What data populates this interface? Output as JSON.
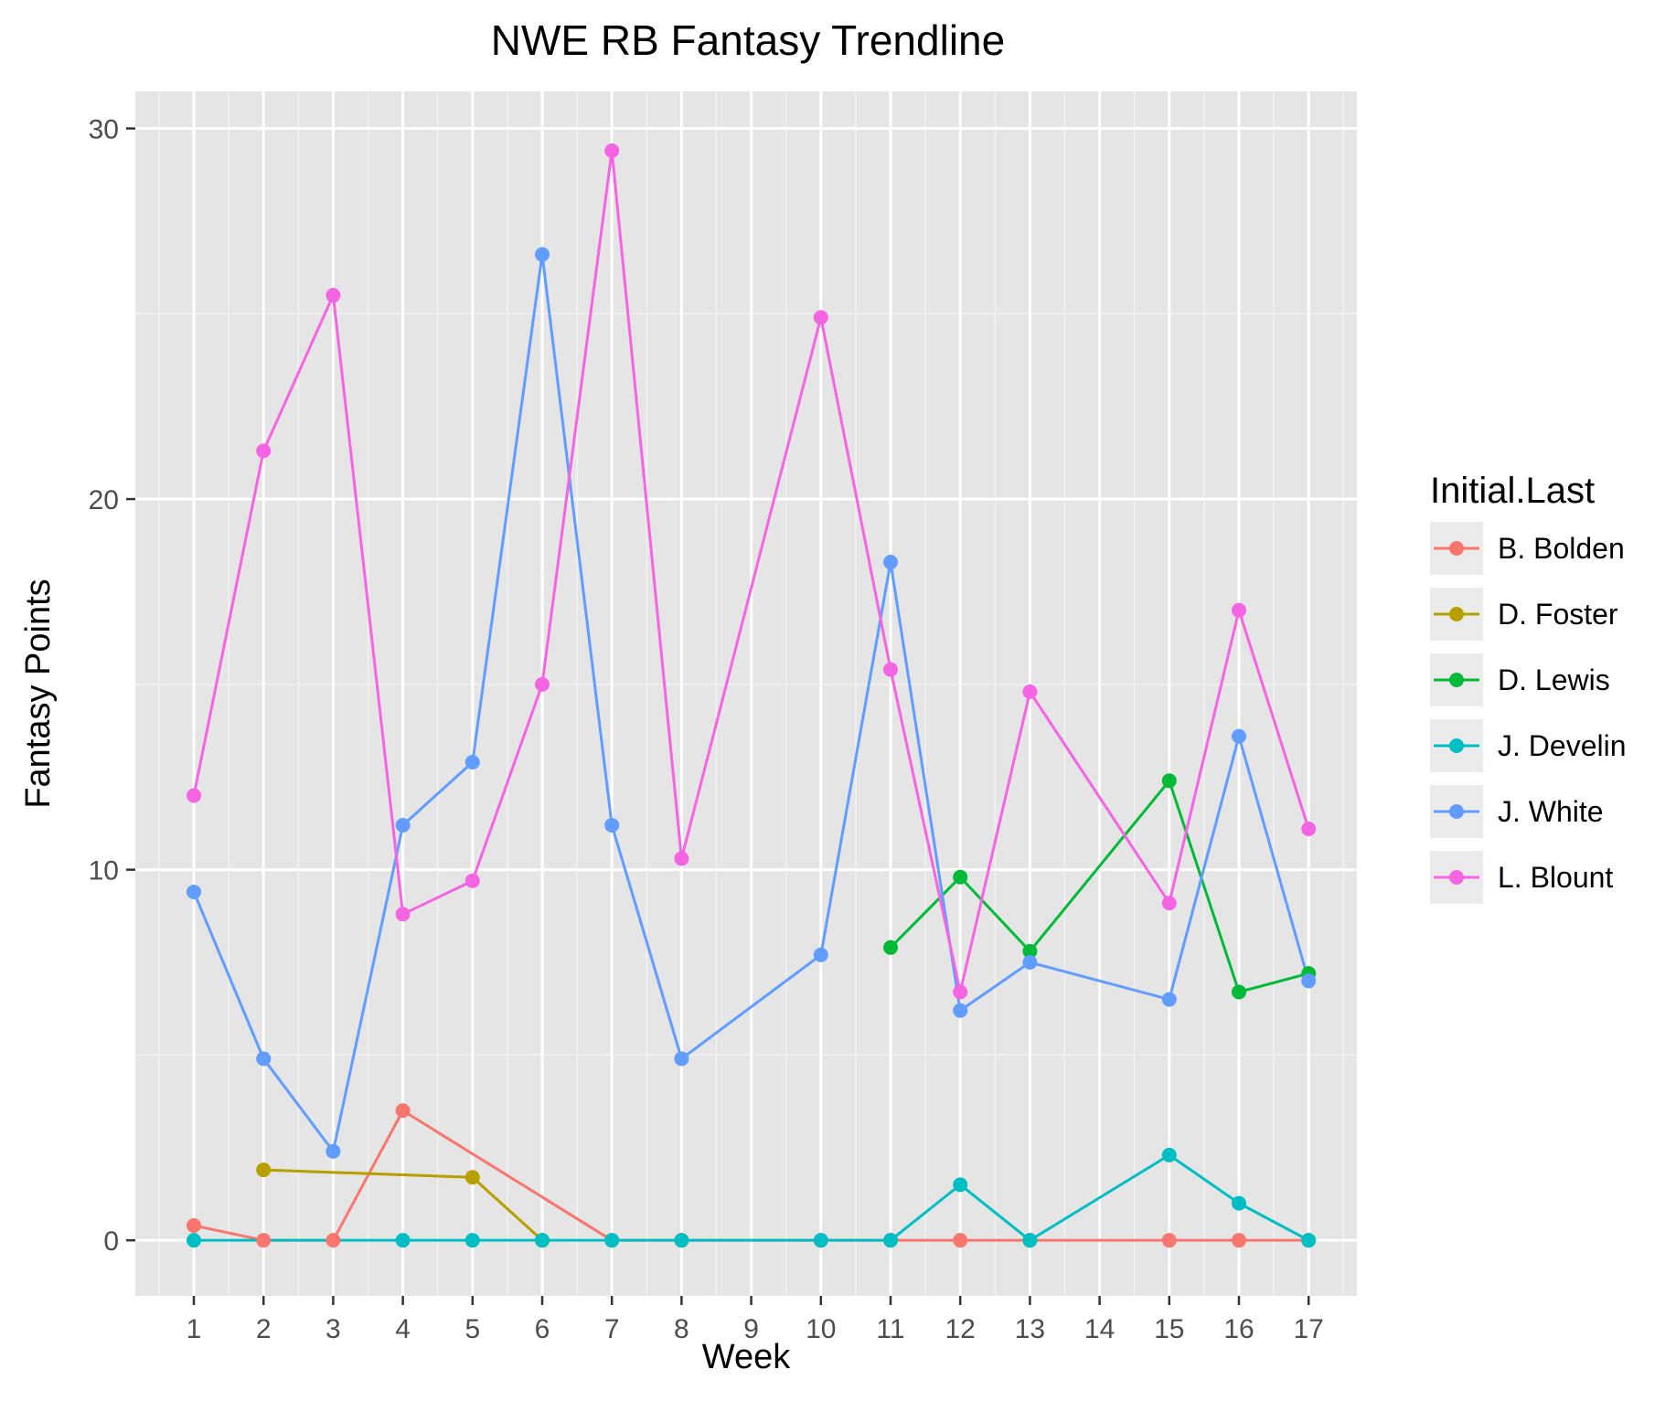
{
  "chart_data": {
    "type": "line",
    "title": "NWE RB Fantasy Trendline",
    "xlabel": "Week",
    "ylabel": "Fantasy Points",
    "categories": [
      "1",
      "2",
      "3",
      "4",
      "5",
      "6",
      "7",
      "8",
      "9",
      "10",
      "11",
      "12",
      "13",
      "14",
      "15",
      "16",
      "17"
    ],
    "ylim": [
      -1.5,
      31.0
    ],
    "yticks": [
      0,
      10,
      20,
      30
    ],
    "grid": true,
    "legend_position": "right",
    "legend": {
      "title": "Initial.Last"
    },
    "series": [
      {
        "name": "B. Bolden",
        "color": "#F8766D",
        "points": [
          [
            1,
            0.4
          ],
          [
            2,
            0.0
          ],
          [
            3,
            0.0
          ],
          [
            4,
            3.5
          ],
          [
            7,
            0.0
          ],
          [
            8,
            0.0
          ],
          [
            10,
            0.0
          ],
          [
            11,
            0.0
          ],
          [
            12,
            0.0
          ],
          [
            13,
            0.0
          ],
          [
            15,
            0.0
          ],
          [
            16,
            0.0
          ],
          [
            17,
            0.0
          ]
        ]
      },
      {
        "name": "D. Foster",
        "color": "#B79F00",
        "points": [
          [
            2,
            1.9
          ],
          [
            5,
            1.7
          ],
          [
            6,
            0.0
          ]
        ]
      },
      {
        "name": "D. Lewis",
        "color": "#00BA38",
        "points": [
          [
            11,
            7.9
          ],
          [
            12,
            9.8
          ],
          [
            13,
            7.8
          ],
          [
            15,
            12.4
          ],
          [
            16,
            6.7
          ],
          [
            17,
            7.2
          ]
        ]
      },
      {
        "name": "J. Develin",
        "color": "#00BFC4",
        "points": [
          [
            1,
            0.0
          ],
          [
            4,
            0.0
          ],
          [
            5,
            0.0
          ],
          [
            6,
            0.0
          ],
          [
            7,
            0.0
          ],
          [
            8,
            0.0
          ],
          [
            10,
            0.0
          ],
          [
            11,
            0.0
          ],
          [
            12,
            1.5
          ],
          [
            13,
            0.0
          ],
          [
            15,
            2.3
          ],
          [
            16,
            1.0
          ],
          [
            17,
            0.0
          ]
        ]
      },
      {
        "name": "J. White",
        "color": "#619CFF",
        "points": [
          [
            1,
            9.4
          ],
          [
            2,
            4.9
          ],
          [
            3,
            2.4
          ],
          [
            4,
            11.2
          ],
          [
            5,
            12.9
          ],
          [
            6,
            26.6
          ],
          [
            7,
            11.2
          ],
          [
            8,
            4.9
          ],
          [
            10,
            7.7
          ],
          [
            11,
            18.3
          ],
          [
            12,
            6.2
          ],
          [
            13,
            7.5
          ],
          [
            15,
            6.5
          ],
          [
            16,
            13.6
          ],
          [
            17,
            7.0
          ]
        ]
      },
      {
        "name": "L. Blount",
        "color": "#F564E3",
        "points": [
          [
            1,
            12.0
          ],
          [
            2,
            21.3
          ],
          [
            3,
            25.5
          ],
          [
            4,
            8.8
          ],
          [
            5,
            9.7
          ],
          [
            6,
            15.0
          ],
          [
            7,
            29.4
          ],
          [
            8,
            10.3
          ],
          [
            10,
            24.9
          ],
          [
            11,
            15.4
          ],
          [
            12,
            6.7
          ],
          [
            13,
            14.8
          ],
          [
            15,
            9.1
          ],
          [
            16,
            17.0
          ],
          [
            17,
            11.1
          ]
        ]
      }
    ]
  }
}
